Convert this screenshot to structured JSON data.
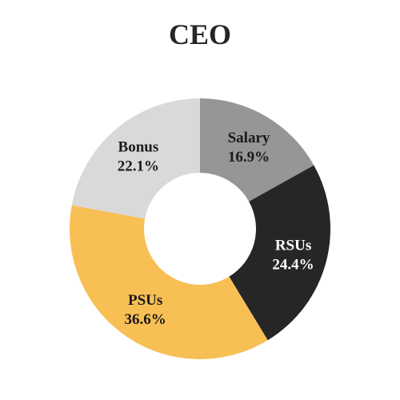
{
  "chart_data": {
    "type": "pie",
    "title": "CEO",
    "donut": true,
    "start": "top",
    "direction": "clockwise",
    "legend": "none",
    "slices": [
      {
        "label": "Salary",
        "value": 16.9,
        "display": "16.9%",
        "color": "#969696",
        "text_color": "#1a1a1a"
      },
      {
        "label": "RSUs",
        "value": 24.4,
        "display": "24.4%",
        "color": "#262626",
        "text_color": "#ffffff"
      },
      {
        "label": "PSUs",
        "value": 36.6,
        "display": "36.6%",
        "color": "#f8bf55",
        "text_color": "#1a1a1a"
      },
      {
        "label": "Bonus",
        "value": 22.1,
        "display": "22.1%",
        "color": "#d9d9d9",
        "text_color": "#1a1a1a"
      }
    ]
  }
}
